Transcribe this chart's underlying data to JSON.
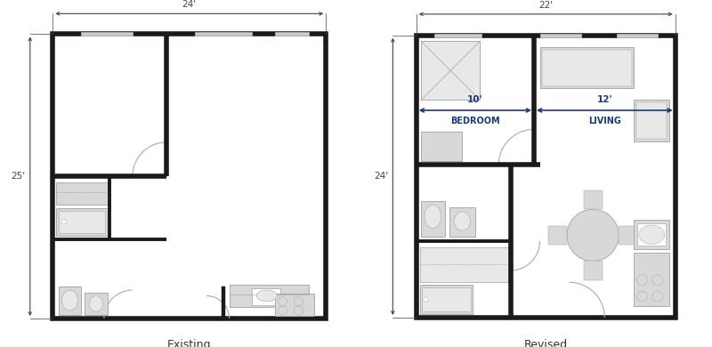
{
  "bg_color": "#ffffff",
  "wall_color": "#1a1a1a",
  "furn_color": "#d8d8d8",
  "furn_edge": "#aaaaaa",
  "dim_color": "#444444",
  "arrow_color": "#1a3a7a",
  "title_color": "#333333",
  "wall_lw": 4.0,
  "furn_lw": 0.7,
  "door_lw": 0.8,
  "existing_label": "Existing",
  "revised_label": "Revised",
  "existing_dim_w": "24'",
  "existing_dim_h": "25'",
  "revised_dim_w": "22'",
  "revised_dim_h": "24'",
  "bedroom_label": "BEDROOM",
  "living_label": "LIVING",
  "bed_width": "10'",
  "liv_width": "12'"
}
